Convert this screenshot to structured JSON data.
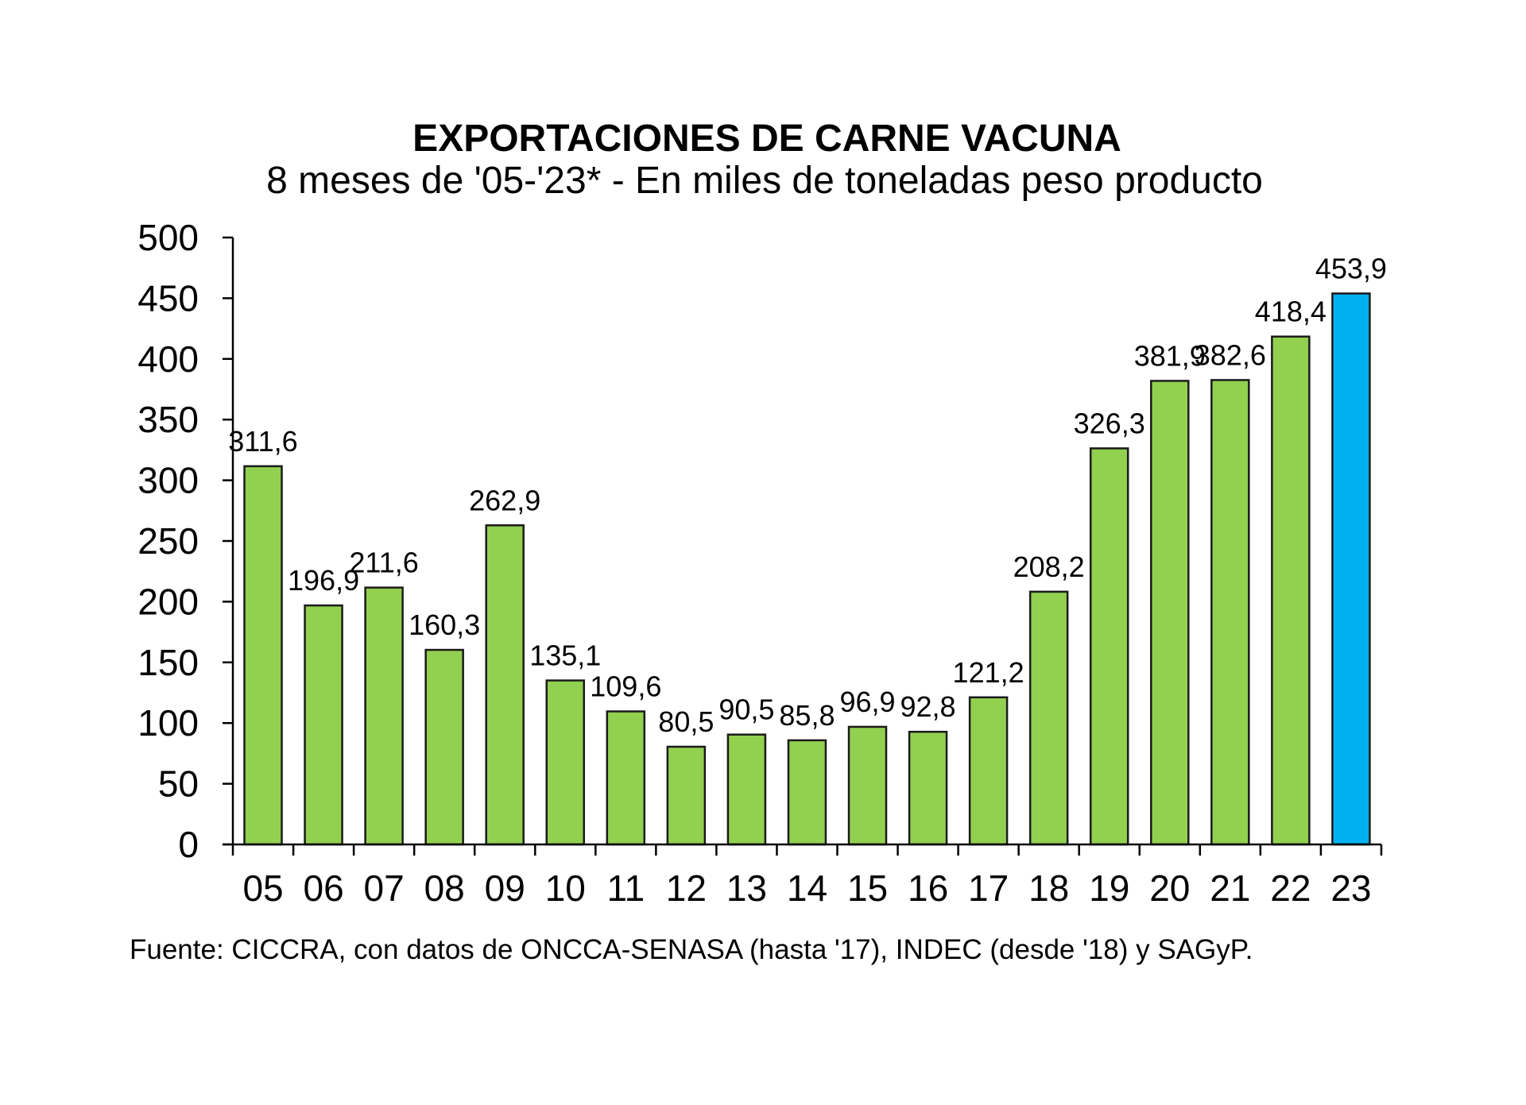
{
  "chart_data": {
    "type": "bar",
    "title": "EXPORTACIONES DE CARNE VACUNA",
    "subtitle": "8 meses de '05-'23* - En miles de toneladas peso producto",
    "xlabel": "",
    "ylabel": "",
    "ylim": [
      0,
      500
    ],
    "yticks": [
      "0",
      "50",
      "100",
      "150",
      "200",
      "250",
      "300",
      "350",
      "400",
      "450",
      "500"
    ],
    "ytick_values": [
      0,
      50,
      100,
      150,
      200,
      250,
      300,
      350,
      400,
      450,
      500
    ],
    "categories": [
      "05",
      "06",
      "07",
      "08",
      "09",
      "10",
      "11",
      "12",
      "13",
      "14",
      "15",
      "16",
      "17",
      "18",
      "19",
      "20",
      "21",
      "22",
      "23"
    ],
    "values": [
      311.6,
      196.9,
      211.6,
      160.3,
      262.9,
      135.1,
      109.6,
      80.5,
      90.5,
      85.8,
      96.9,
      92.8,
      121.2,
      208.2,
      326.3,
      381.9,
      382.6,
      418.4,
      453.9
    ],
    "value_labels": [
      "311,6",
      "196,9",
      "211,6",
      "160,3",
      "262,9",
      "135,1",
      "109,6",
      "80,5",
      "90,5",
      "85,8",
      "96,9",
      "92,8",
      "121,2",
      "208,2",
      "326,3",
      "381,9",
      "382,6",
      "418,4",
      "453,9"
    ],
    "highlight_index": 18,
    "grid": false,
    "legend": "none",
    "colors": {
      "bar": "#92D050",
      "highlight": "#00B0F0",
      "border": "#1a1a1a",
      "axis": "#000000"
    },
    "source": "Fuente: CICCRA, con datos de ONCCA-SENASA (hasta '17), INDEC (desde '18) y SAGyP."
  }
}
